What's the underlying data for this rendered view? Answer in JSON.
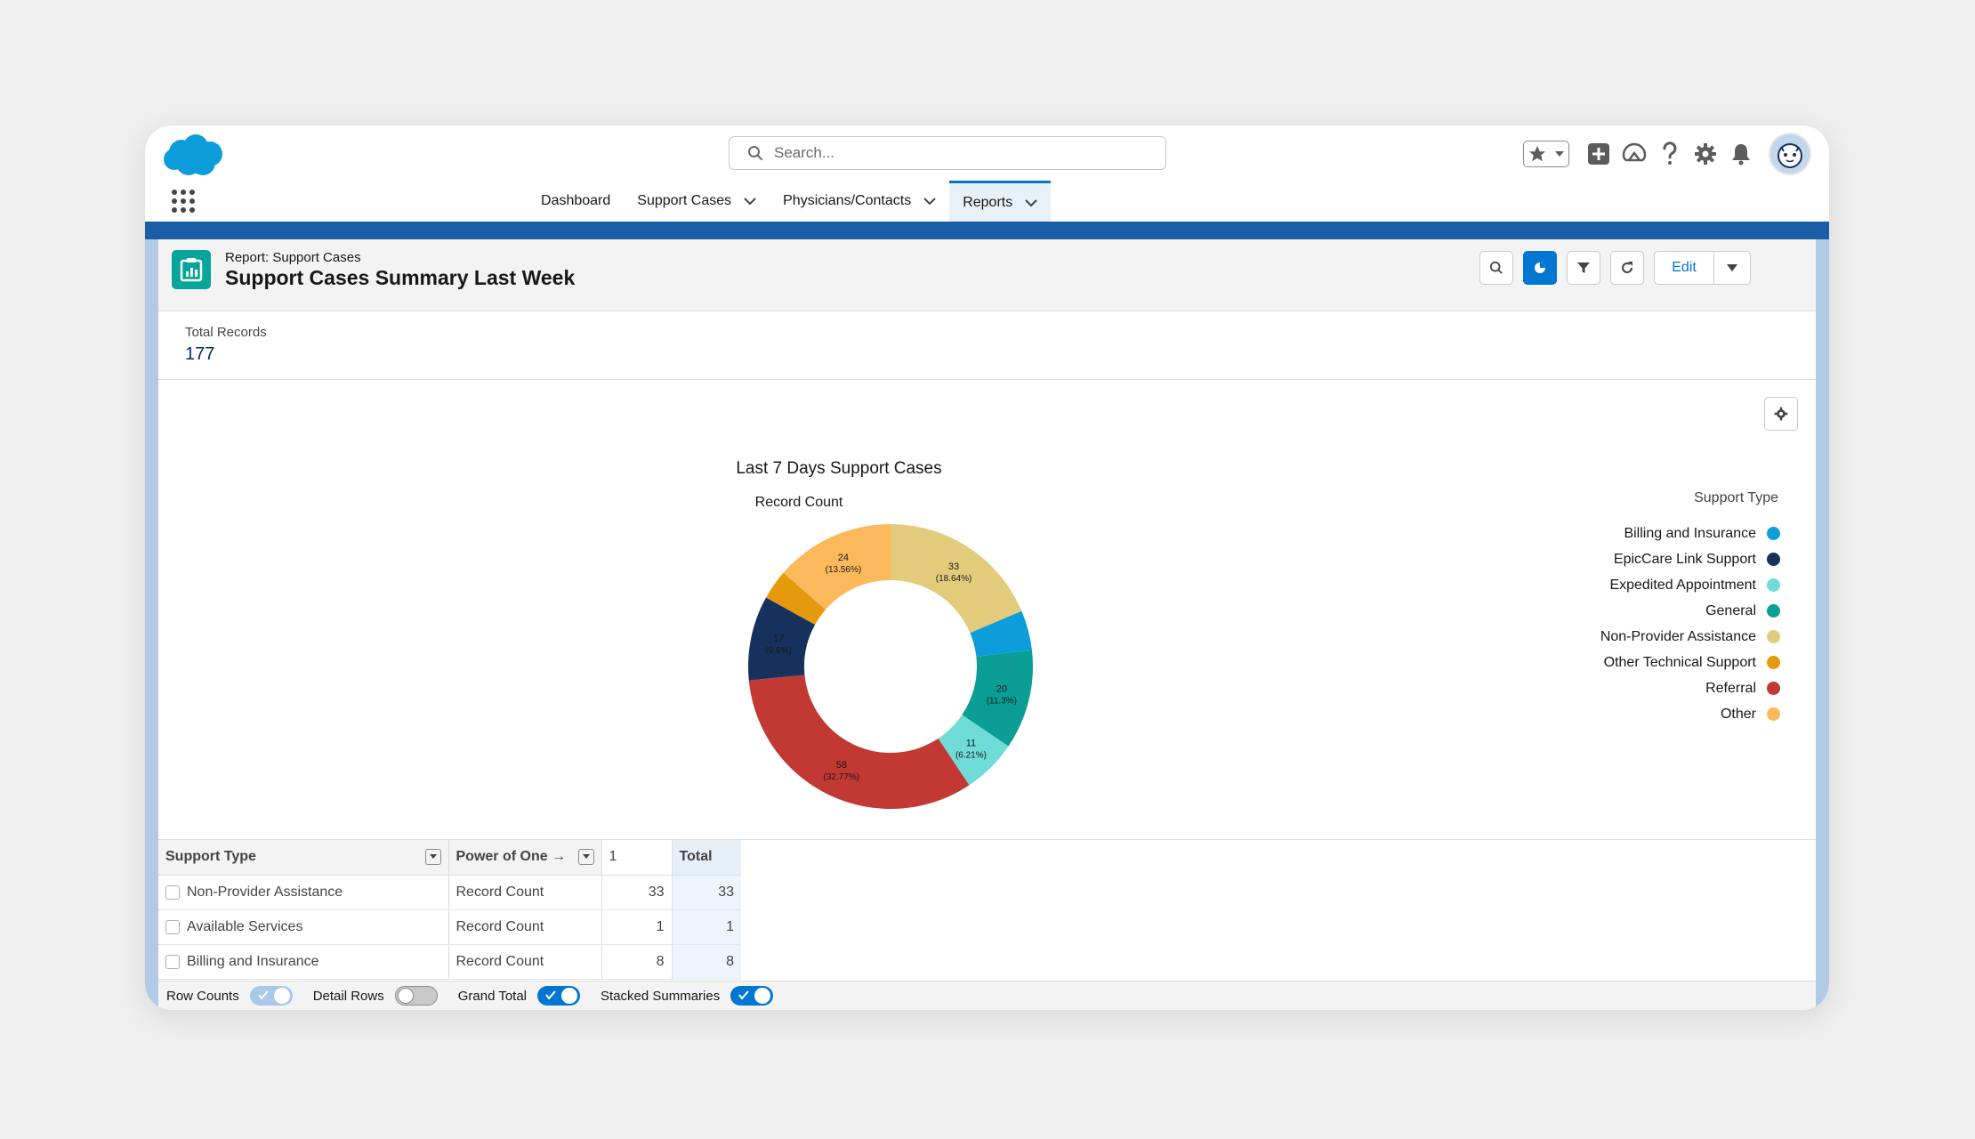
{
  "header": {
    "search_placeholder": "Search...",
    "nav": [
      {
        "label": "Dashboard",
        "has_menu": false
      },
      {
        "label": "Support Cases",
        "has_menu": true
      },
      {
        "label": "Physicians/Contacts",
        "has_menu": true
      },
      {
        "label": "Reports",
        "has_menu": true,
        "active": true
      }
    ]
  },
  "report": {
    "subtitle": "Report: Support Cases",
    "title": "Support Cases Summary Last Week",
    "edit_label": "Edit",
    "total_records_label": "Total Records",
    "total_records_value": "177"
  },
  "chart_data": {
    "type": "pie",
    "style": "donut",
    "title": "Last 7 Days Support Cases",
    "subtitle": "Record Count",
    "legend_title": "Support Type",
    "legend_position": "right",
    "slices": [
      {
        "name": "Non-Provider Assistance",
        "value": 33,
        "label": "33",
        "pct_label": "(18.64%)",
        "color": "#e2cc7c"
      },
      {
        "name": "Billing and Insurance",
        "value": 8,
        "label": "",
        "pct_label": "",
        "color": "#0d9dda"
      },
      {
        "name": "General",
        "value": 20,
        "label": "20",
        "pct_label": "(11.3%)",
        "color": "#0b9e94"
      },
      {
        "name": "Expedited Appointment",
        "value": 11,
        "label": "11",
        "pct_label": "(6.21%)",
        "color": "#6fdcd8"
      },
      {
        "name": "Referral",
        "value": 58,
        "label": "58",
        "pct_label": "(32.77%)",
        "color": "#c23934"
      },
      {
        "name": "EpicCare Link Support",
        "value": 17,
        "label": "17",
        "pct_label": "(9.6%)",
        "color": "#16325c"
      },
      {
        "name": "Other Technical Support",
        "value": 6,
        "label": "",
        "pct_label": "",
        "color": "#e49a0c"
      },
      {
        "name": "Other",
        "value": 24,
        "label": "24",
        "pct_label": "(13.56%)",
        "color": "#fcb95b"
      }
    ],
    "legend": [
      {
        "name": "Billing and Insurance",
        "color": "#0d9dda"
      },
      {
        "name": "EpicCare Link Support",
        "color": "#16325c"
      },
      {
        "name": "Expedited Appointment",
        "color": "#6fdcd8"
      },
      {
        "name": "General",
        "color": "#0b9e94"
      },
      {
        "name": "Non-Provider Assistance",
        "color": "#e2cc7c"
      },
      {
        "name": "Other Technical Support",
        "color": "#e49a0c"
      },
      {
        "name": "Referral",
        "color": "#c23934"
      },
      {
        "name": "Other",
        "color": "#fcb95b"
      }
    ]
  },
  "table": {
    "headers": [
      "Support Type",
      "Power of One",
      "1",
      "Total"
    ],
    "power_arrow": "→",
    "rows": [
      {
        "type": "Non-Provider Assistance",
        "measure": "Record Count",
        "v1": "33",
        "total": "33"
      },
      {
        "type": "Available Services",
        "measure": "Record Count",
        "v1": "1",
        "total": "1"
      },
      {
        "type": "Billing and Insurance",
        "measure": "Record Count",
        "v1": "8",
        "total": "8"
      }
    ]
  },
  "footer": {
    "toggles": [
      {
        "label": "Row Counts",
        "state": "on-disabled"
      },
      {
        "label": "Detail Rows",
        "state": "off"
      },
      {
        "label": "Grand Total",
        "state": "on"
      },
      {
        "label": "Stacked Summaries",
        "state": "on"
      }
    ]
  },
  "colors": {
    "brand": "#0176d3",
    "nav_bar": "#1b5ea8",
    "report_icon": "#06a59a"
  }
}
